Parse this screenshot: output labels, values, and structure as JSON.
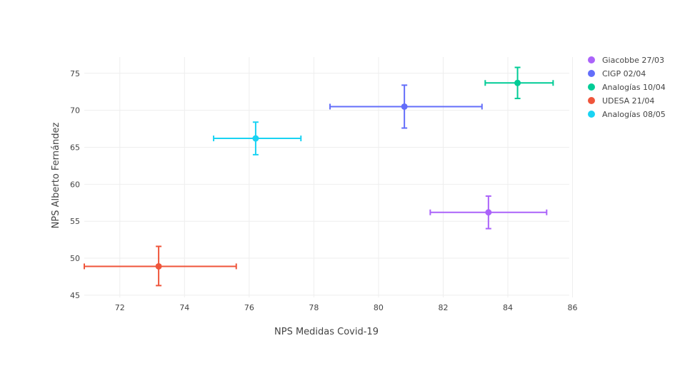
{
  "chart_data": {
    "type": "scatter",
    "xlabel": "NPS Medidas Covid-19",
    "ylabel": "NPS Alberto Fernández",
    "xlim": [
      70.9,
      85.9
    ],
    "ylim": [
      44.7,
      77.2
    ],
    "xticks": [
      72,
      74,
      76,
      78,
      80,
      82,
      84,
      86
    ],
    "yticks": [
      45,
      50,
      55,
      60,
      65,
      70,
      75
    ],
    "grid": true,
    "legend_position": "top-right",
    "series": [
      {
        "name": "Giacobbe 27/03",
        "color": "#ab63fa",
        "x": 83.4,
        "y": 56.2,
        "x_err": [
          81.6,
          85.2
        ],
        "y_err": [
          54.0,
          58.4
        ]
      },
      {
        "name": "CIGP 02/04",
        "color": "#636efa",
        "x": 80.8,
        "y": 70.5,
        "x_err": [
          78.5,
          83.2
        ],
        "y_err": [
          67.6,
          73.4
        ]
      },
      {
        "name": "Analogías 10/04",
        "color": "#00cc96",
        "x": 84.3,
        "y": 73.7,
        "x_err": [
          83.3,
          85.4
        ],
        "y_err": [
          71.6,
          75.8
        ]
      },
      {
        "name": "UDESA 21/04",
        "color": "#ef553b",
        "x": 73.2,
        "y": 48.9,
        "x_err": [
          70.9,
          75.6
        ],
        "y_err": [
          46.3,
          51.6
        ]
      },
      {
        "name": "Analogías 08/05",
        "color": "#19d3f3",
        "x": 76.2,
        "y": 66.2,
        "x_err": [
          74.9,
          77.6
        ],
        "y_err": [
          64.0,
          68.4
        ]
      }
    ]
  }
}
